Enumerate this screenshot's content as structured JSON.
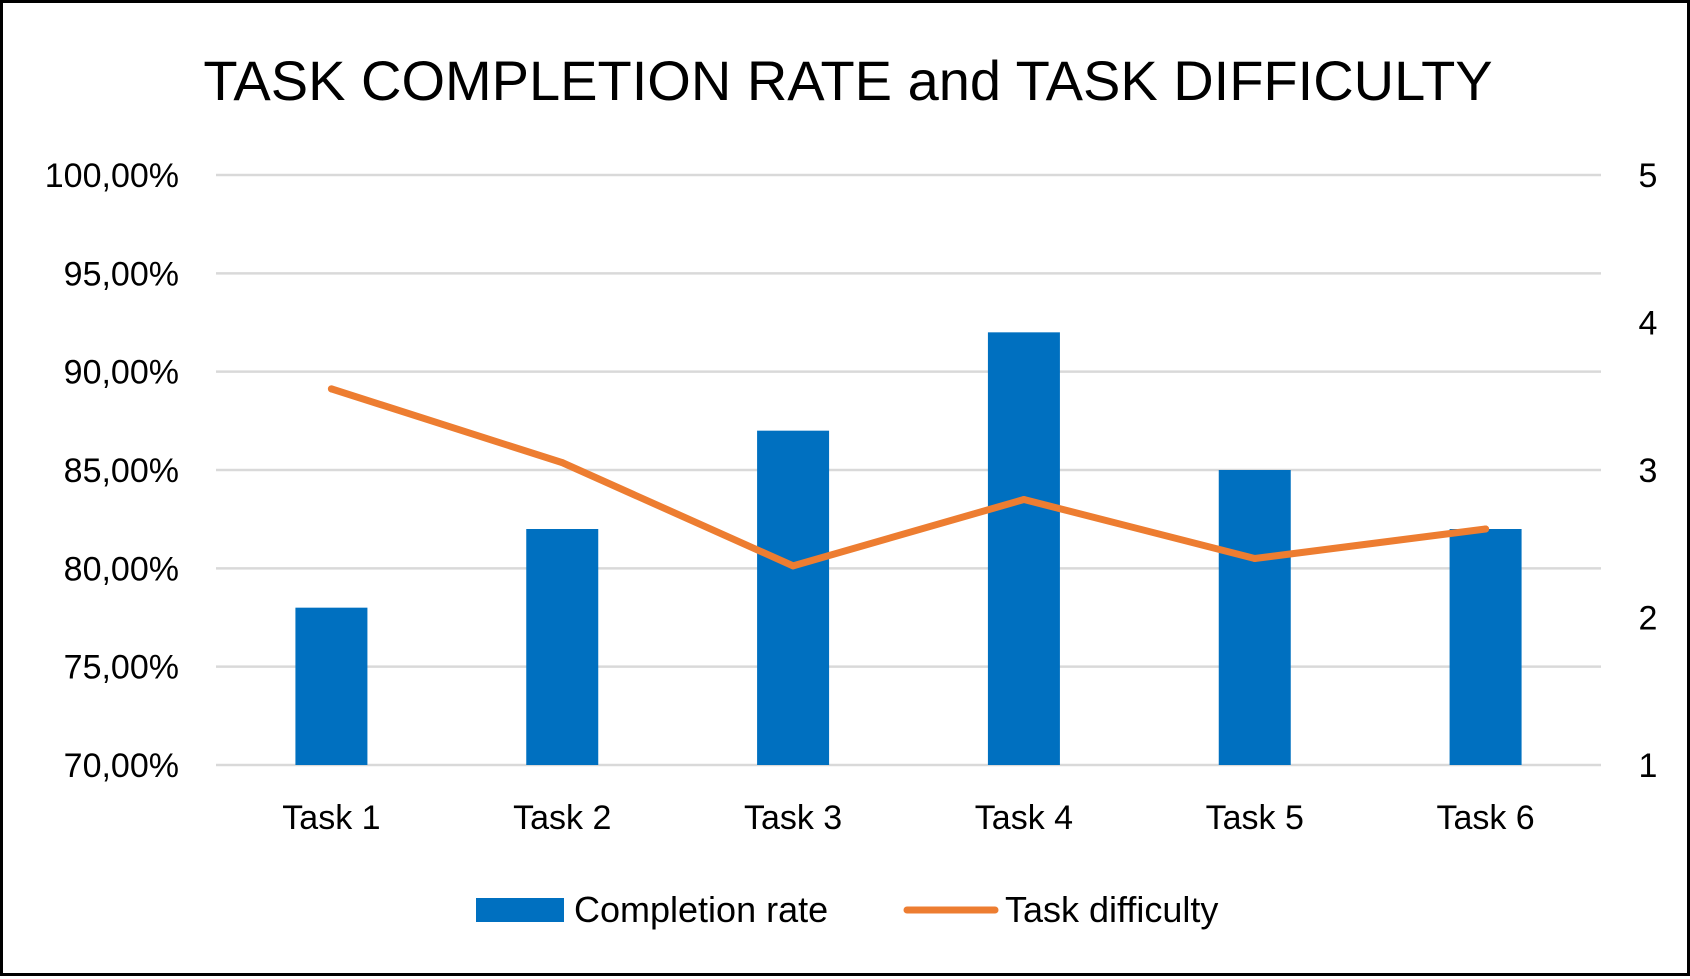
{
  "chart_data": {
    "type": "bar",
    "title": "TASK COMPLETION RATE and TASK DIFFICULTY",
    "categories": [
      "Task 1",
      "Task 2",
      "Task 3",
      "Task 4",
      "Task 5",
      "Task 6"
    ],
    "series": [
      {
        "name": "Completion rate",
        "type": "bar",
        "axis": "left",
        "color": "#0070C0",
        "values": [
          0.78,
          0.82,
          0.87,
          0.92,
          0.85,
          0.82
        ]
      },
      {
        "name": "Task difficulty",
        "type": "line",
        "axis": "right",
        "color": "#ED7D31",
        "values": [
          3.55,
          3.05,
          2.35,
          2.8,
          2.4,
          2.6
        ]
      }
    ],
    "y_left": {
      "ylim": [
        0.7,
        1.0
      ],
      "tick_labels": [
        "70,00%",
        "75,00%",
        "80,00%",
        "85,00%",
        "90,00%",
        "95,00%",
        "100,00%"
      ]
    },
    "y_right": {
      "ylim": [
        1,
        5
      ],
      "tick_labels": [
        "1",
        "2",
        "3",
        "4",
        "5"
      ]
    },
    "grid": true,
    "legend_position": "bottom"
  }
}
